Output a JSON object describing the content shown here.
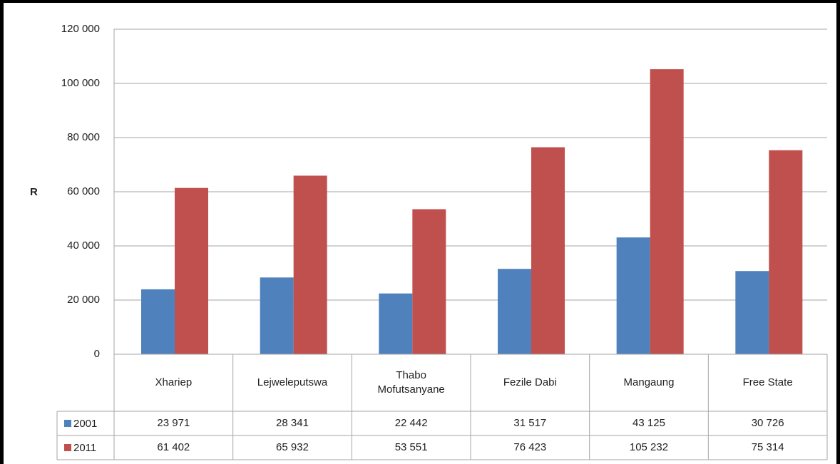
{
  "chart_data": {
    "type": "bar",
    "y_axis_label": "R",
    "categories": [
      "Xhariep",
      "Lejweleputswa",
      "Thabo Mofutsanyane",
      "Fezile Dabi",
      "Mangaung",
      "Free State"
    ],
    "series": [
      {
        "name": "2001",
        "color": "#4f81bd",
        "values": [
          23971,
          28341,
          22442,
          31517,
          43125,
          30726
        ],
        "value_labels": [
          "23 971",
          "28 341",
          "22 442",
          "31 517",
          "43 125",
          "30 726"
        ]
      },
      {
        "name": "2011",
        "color": "#c0504d",
        "values": [
          61402,
          65932,
          53551,
          76423,
          105232,
          75314
        ],
        "value_labels": [
          "61 402",
          "65 932",
          "53 551",
          "76 423",
          "105 232",
          "75 314"
        ]
      }
    ],
    "ylim": [
      0,
      120000
    ],
    "yticks": [
      0,
      {
        "value": 20000,
        "label": "20 000"
      },
      {
        "value": 40000,
        "label": "40 000"
      },
      {
        "value": 60000,
        "label": "60 000"
      },
      {
        "value": 80000,
        "label": "80 000"
      },
      {
        "value": 100000,
        "label": "100 000"
      },
      {
        "value": 120000,
        "label": "120 000"
      }
    ],
    "grid": true
  }
}
